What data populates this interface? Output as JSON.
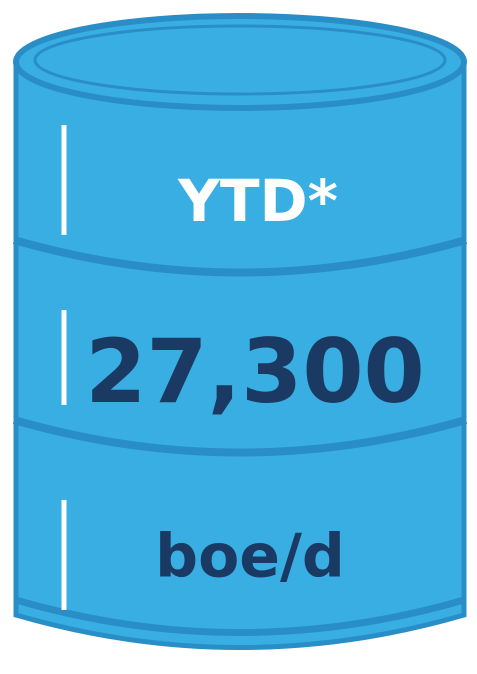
{
  "label": "YTD*",
  "value": "27,300",
  "unit": "boe/d"
}
